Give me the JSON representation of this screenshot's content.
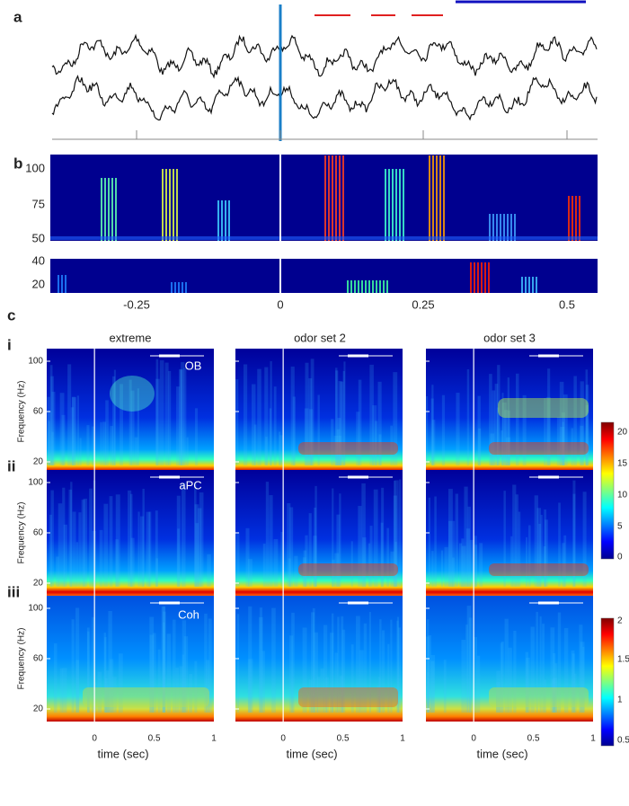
{
  "panel_labels": [
    "a",
    "b",
    "c"
  ],
  "row_labels": [
    "i",
    "ii",
    "iii"
  ],
  "column_titles": [
    "extreme",
    "odor set 2",
    "odor set 3"
  ],
  "region_labels": [
    "OB",
    "aPC",
    "Coh"
  ],
  "panel_b": {
    "y_ticks_high": [
      100,
      75,
      50
    ],
    "y_ticks_low": [
      40,
      20
    ],
    "x_ticks": [
      -0.25,
      0,
      0.25,
      0.5
    ]
  },
  "panel_c": {
    "y_label": "Frequency (Hz)",
    "y_ticks": [
      100,
      60,
      20
    ],
    "x_label": "time (sec)",
    "x_ticks": [
      0,
      0.5,
      1
    ],
    "colorbar_power": [
      20,
      15,
      10,
      5,
      0
    ],
    "colorbar_coherence": [
      2,
      1.5,
      1,
      0.5
    ]
  }
}
